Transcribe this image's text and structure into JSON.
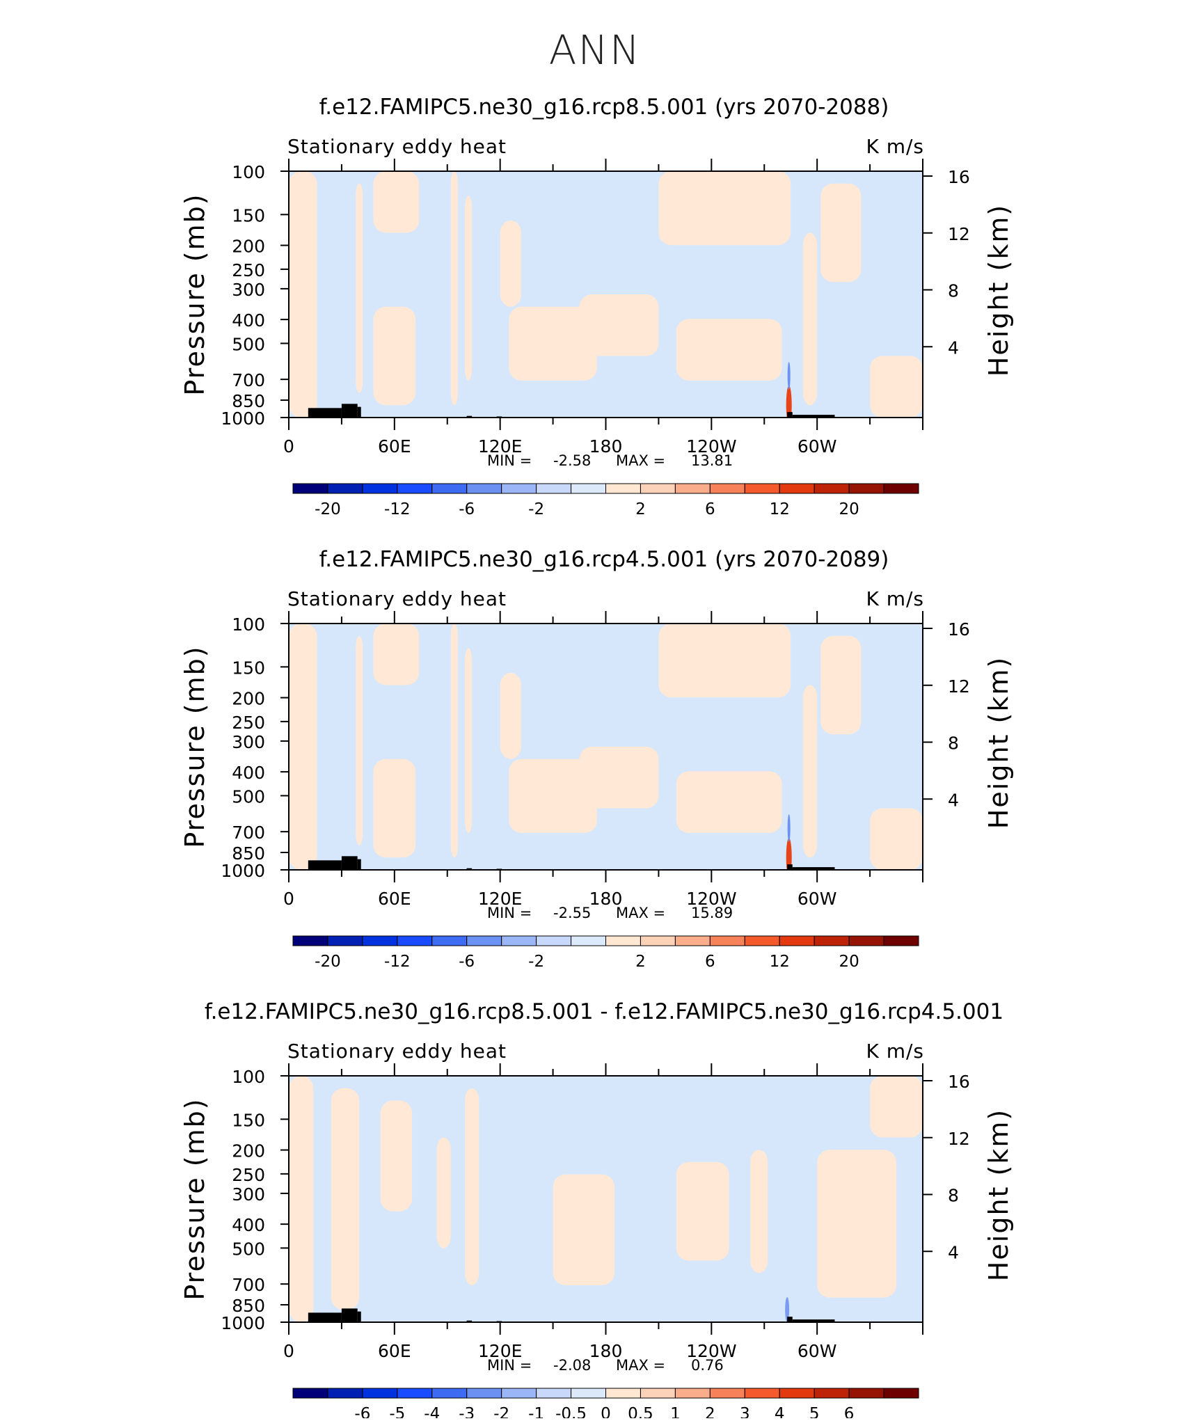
{
  "figure": {
    "title": "ANN"
  },
  "chart_data": [
    {
      "type": "heatmap",
      "title": "f.e12.FAMIPC5.ne30_g16.rcp8.5.001 (yrs 2070-2088)",
      "subtitle_left": "Stationary eddy heat",
      "subtitle_right": "K m/s",
      "ylabel": "Pressure (mb)",
      "ylabel_right": "Height (km)",
      "x_ticks": [
        "0",
        "60E",
        "120E",
        "180",
        "120W",
        "60W"
      ],
      "y_ticks": [
        "100",
        "150",
        "200",
        "250",
        "300",
        "400",
        "500",
        "700",
        "850",
        "1000"
      ],
      "y_ticks_right": [
        "16",
        "12",
        "8",
        "4"
      ],
      "stats": {
        "min_label": "MIN =",
        "min": "-2.58",
        "max_label": "MAX =",
        "max": "13.81"
      },
      "colorbar_labels": [
        "-20",
        "-12",
        "-6",
        "-2",
        "2",
        "6",
        "12",
        "20"
      ],
      "xlim": [
        0,
        360
      ],
      "ylim": [
        1000,
        100
      ]
    },
    {
      "type": "heatmap",
      "title": "f.e12.FAMIPC5.ne30_g16.rcp4.5.001 (yrs 2070-2089)",
      "subtitle_left": "Stationary eddy heat",
      "subtitle_right": "K m/s",
      "ylabel": "Pressure (mb)",
      "ylabel_right": "Height (km)",
      "x_ticks": [
        "0",
        "60E",
        "120E",
        "180",
        "120W",
        "60W"
      ],
      "y_ticks": [
        "100",
        "150",
        "200",
        "250",
        "300",
        "400",
        "500",
        "700",
        "850",
        "1000"
      ],
      "y_ticks_right": [
        "16",
        "12",
        "8",
        "4"
      ],
      "stats": {
        "min_label": "MIN =",
        "min": "-2.55",
        "max_label": "MAX =",
        "max": "15.89"
      },
      "colorbar_labels": [
        "-20",
        "-12",
        "-6",
        "-2",
        "2",
        "6",
        "12",
        "20"
      ],
      "xlim": [
        0,
        360
      ],
      "ylim": [
        1000,
        100
      ]
    },
    {
      "type": "heatmap",
      "title": "f.e12.FAMIPC5.ne30_g16.rcp8.5.001 - f.e12.FAMIPC5.ne30_g16.rcp4.5.001",
      "subtitle_left": "Stationary eddy heat",
      "subtitle_right": "K m/s",
      "ylabel": "Pressure (mb)",
      "ylabel_right": "Height (km)",
      "x_ticks": [
        "0",
        "60E",
        "120E",
        "180",
        "120W",
        "60W"
      ],
      "y_ticks": [
        "100",
        "150",
        "200",
        "250",
        "300",
        "400",
        "500",
        "700",
        "850",
        "1000"
      ],
      "y_ticks_right": [
        "16",
        "12",
        "8",
        "4"
      ],
      "stats": {
        "min_label": "MIN =",
        "min": "-2.08",
        "max_label": "MAX =",
        "max": "0.76"
      },
      "colorbar_labels": [
        "-6",
        "-5",
        "-4",
        "-3",
        "-2",
        "-1",
        "-0.5",
        "0",
        "0.5",
        "1",
        "2",
        "3",
        "4",
        "5",
        "6"
      ],
      "xlim": [
        0,
        360
      ],
      "ylim": [
        1000,
        100
      ]
    }
  ],
  "colors": {
    "colorbar": [
      "#000078",
      "#0020b4",
      "#0033e0",
      "#1a4cff",
      "#3d6bf2",
      "#6b92f2",
      "#9bb6f7",
      "#c7d8fa",
      "#dce9fb",
      "#ffe7d2",
      "#fcd2b8",
      "#f9ad8a",
      "#f78158",
      "#f55a2c",
      "#e3390f",
      "#be2308",
      "#961404",
      "#6e0000"
    ],
    "field_pos": "#ffe9d6",
    "field_neg": "#d6e7fb",
    "topography": "#000000",
    "hot_spot": "#e8441a",
    "cold_spot": "#7a9cf0"
  }
}
